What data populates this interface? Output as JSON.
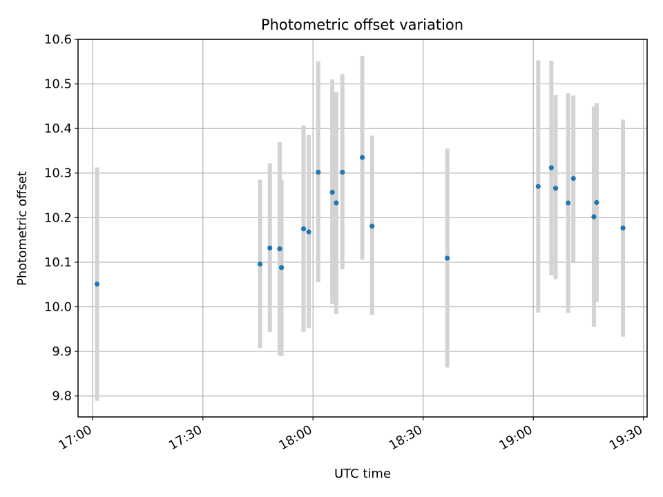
{
  "chart_data": {
    "type": "scatter",
    "title": "Photometric offset variation",
    "xlabel": "UTC time",
    "ylabel": "Photometric offset",
    "x_ticks": [
      "17:00",
      "17:30",
      "18:00",
      "18:30",
      "19:00",
      "19:30"
    ],
    "y_ticks": [
      "9.8",
      "9.9",
      "10.0",
      "10.1",
      "10.2",
      "10.3",
      "10.4",
      "10.5",
      "10.6"
    ],
    "x_range": [
      "16:56:00",
      "19:31:00"
    ],
    "ylim": [
      9.753,
      10.6
    ],
    "grid": true,
    "errorbar_color": "#d3d3d3",
    "point_color": "#1f77b4",
    "series": [
      {
        "points": [
          {
            "x": "17:01:10",
            "y": 10.051,
            "err_low": 9.789,
            "err_high": 10.313
          },
          {
            "x": "17:45:35",
            "y": 10.096,
            "err_low": 9.907,
            "err_high": 10.285
          },
          {
            "x": "17:48:15",
            "y": 10.132,
            "err_low": 9.943,
            "err_high": 10.322
          },
          {
            "x": "17:50:55",
            "y": 10.13,
            "err_low": 9.891,
            "err_high": 10.369
          },
          {
            "x": "17:51:25",
            "y": 10.088,
            "err_low": 9.889,
            "err_high": 10.285
          },
          {
            "x": "17:57:25",
            "y": 10.175,
            "err_low": 9.944,
            "err_high": 10.407
          },
          {
            "x": "17:58:50",
            "y": 10.168,
            "err_low": 9.952,
            "err_high": 10.386
          },
          {
            "x": "18:01:25",
            "y": 10.302,
            "err_low": 10.055,
            "err_high": 10.55
          },
          {
            "x": "18:05:15",
            "y": 10.257,
            "err_low": 10.007,
            "err_high": 10.51
          },
          {
            "x": "18:06:20",
            "y": 10.233,
            "err_low": 9.984,
            "err_high": 10.482
          },
          {
            "x": "18:08:00",
            "y": 10.302,
            "err_low": 10.084,
            "err_high": 10.522
          },
          {
            "x": "18:13:25",
            "y": 10.335,
            "err_low": 10.106,
            "err_high": 10.563
          },
          {
            "x": "18:16:05",
            "y": 10.181,
            "err_low": 9.982,
            "err_high": 10.384
          },
          {
            "x": "18:36:35",
            "y": 10.109,
            "err_low": 9.864,
            "err_high": 10.355
          },
          {
            "x": "19:01:20",
            "y": 10.27,
            "err_low": 9.987,
            "err_high": 10.553
          },
          {
            "x": "19:04:55",
            "y": 10.312,
            "err_low": 10.071,
            "err_high": 10.552
          },
          {
            "x": "19:06:05",
            "y": 10.266,
            "err_low": 10.062,
            "err_high": 10.475
          },
          {
            "x": "19:09:30",
            "y": 10.233,
            "err_low": 9.986,
            "err_high": 10.479
          },
          {
            "x": "19:10:55",
            "y": 10.288,
            "err_low": 10.101,
            "err_high": 10.474
          },
          {
            "x": "19:16:30",
            "y": 10.202,
            "err_low": 9.955,
            "err_high": 10.449
          },
          {
            "x": "19:17:15",
            "y": 10.234,
            "err_low": 10.011,
            "err_high": 10.457
          },
          {
            "x": "19:24:25",
            "y": 10.177,
            "err_low": 9.933,
            "err_high": 10.42
          }
        ]
      }
    ]
  }
}
